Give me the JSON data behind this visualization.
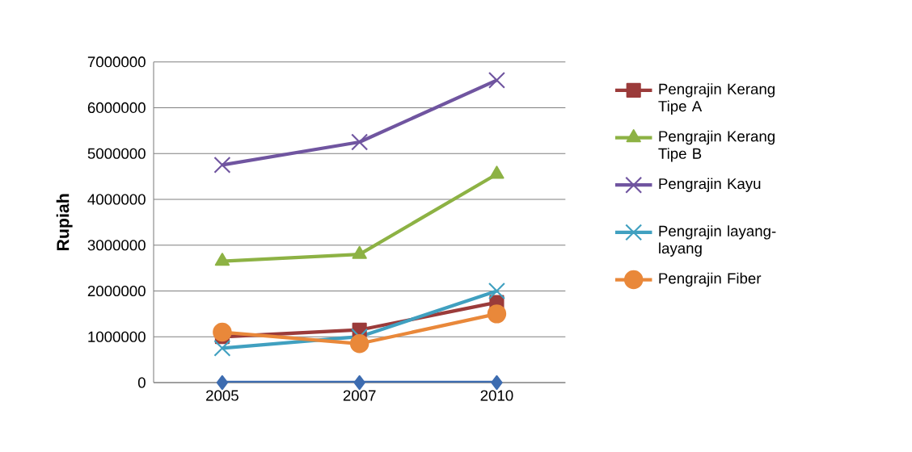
{
  "chart_data": {
    "type": "line",
    "ylabel": "Rupiah",
    "categories": [
      "2005",
      "2007",
      "2010"
    ],
    "series": [
      {
        "name": "Pengrajin Kerang Tipe A",
        "color": "#9b3b3a",
        "marker": "square",
        "values": [
          1000000,
          1150000,
          1750000
        ]
      },
      {
        "name": "Pengrajin Kerang Tipe B",
        "color": "#8db244",
        "marker": "triangle",
        "values": [
          2650000,
          2800000,
          4550000
        ]
      },
      {
        "name": "Pengrajin Kayu",
        "color": "#7055a0",
        "marker": "cross",
        "values": [
          4750000,
          5250000,
          6600000
        ]
      },
      {
        "name": "Pengrajin layang-layang",
        "color": "#40a0c0",
        "marker": "cross",
        "values": [
          750000,
          1000000,
          2000000
        ]
      },
      {
        "name": "Pengrajin Fiber",
        "color": "#e9883a",
        "marker": "circle",
        "values": [
          1100000,
          850000,
          1500000
        ]
      },
      {
        "color": "#3d6cb0",
        "marker": "diamond",
        "values": [
          0,
          0,
          0
        ]
      }
    ],
    "ylim": [
      0,
      7000000
    ],
    "yticks": [
      0,
      1000000,
      2000000,
      3000000,
      4000000,
      5000000,
      6000000,
      7000000
    ],
    "grid": "y",
    "legend": "right",
    "line_style": "solid"
  }
}
